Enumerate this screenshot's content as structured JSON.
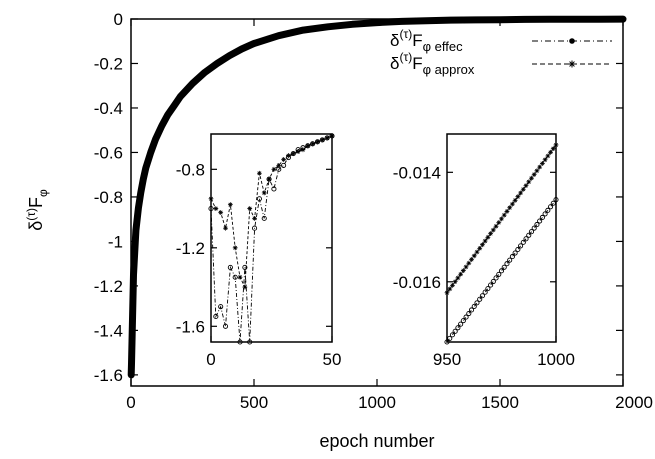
{
  "chart_data": [
    {
      "type": "scatter",
      "panel": "main",
      "xlabel": "epoch number",
      "ylabel": "δ(τ)Fφ",
      "ylabel_parts": {
        "main": "δ",
        "sup": "(τ)",
        "tail": "F",
        "sub": "φ"
      },
      "xlim": [
        0,
        2000
      ],
      "ylim": [
        -1.65,
        0
      ],
      "xticks": [
        0,
        500,
        1000,
        1500,
        2000
      ],
      "xtick_labels": [
        "0",
        "500",
        "1000",
        "1500",
        "2000"
      ],
      "yticks": [
        0,
        -0.2,
        -0.4,
        -0.6,
        -0.8,
        -1,
        -1.2,
        -1.4,
        -1.6
      ],
      "ytick_labels": [
        "0",
        "-0.2",
        "-0.4",
        "-0.6",
        "-0.8",
        "-1",
        "-1.2",
        "-1.4",
        "-1.6"
      ],
      "grid": false,
      "legend_position": "top-right",
      "legend": [
        {
          "name_main": "δ",
          "name_sup": "(τ)",
          "name_tail": "F",
          "name_sub": "φ effec",
          "style": "dot-dash",
          "marker": "circle"
        },
        {
          "name_main": "δ",
          "name_sup": "(τ)",
          "name_tail": "F",
          "name_sub": "φ approx",
          "style": "dashed",
          "marker": "star"
        }
      ],
      "series": [
        {
          "x": [
            1,
            2,
            4,
            6,
            8,
            10,
            15,
            20,
            30,
            40,
            50,
            60,
            80,
            100,
            125,
            150,
            175,
            200,
            250,
            300,
            350,
            400,
            450,
            500,
            600,
            700,
            800,
            900,
            1000,
            1100,
            1200,
            1300,
            1400,
            1500,
            1600,
            1700,
            1800,
            1900,
            2000
          ],
          "y": [
            -1.6,
            -1.55,
            -1.45,
            -1.35,
            -1.25,
            -1.15,
            -1.05,
            -0.95,
            -0.85,
            -0.78,
            -0.72,
            -0.67,
            -0.6,
            -0.54,
            -0.48,
            -0.43,
            -0.39,
            -0.35,
            -0.29,
            -0.24,
            -0.2,
            -0.165,
            -0.135,
            -0.11,
            -0.075,
            -0.05,
            -0.035,
            -0.024,
            -0.016,
            -0.011,
            -0.008,
            -0.005,
            -0.004,
            -0.003,
            -0.002,
            -0.0015,
            -0.001,
            -0.0007,
            -0.0005
          ]
        }
      ]
    },
    {
      "type": "line",
      "panel": "inset-left",
      "xlim": [
        0,
        50
      ],
      "ylim": [
        -1.68,
        -0.62
      ],
      "xticks": [
        0,
        50
      ],
      "xtick_labels": [
        "0",
        "50"
      ],
      "yticks": [
        -0.8,
        -1.2,
        -1.6
      ],
      "ytick_labels": [
        "-0.8",
        "-1.2",
        "-1.6"
      ],
      "series": [
        {
          "name": "δ(τ)Fφ effec",
          "style": "dot-dash",
          "x": [
            0,
            2,
            4,
            6,
            8,
            10,
            12,
            14,
            16,
            18,
            20,
            22,
            24,
            26,
            28,
            30,
            32,
            34,
            36,
            38,
            40,
            42,
            44,
            46,
            48,
            50
          ],
          "y": [
            -1.0,
            -1.55,
            -1.5,
            -1.6,
            -1.3,
            -1.35,
            -1.68,
            -1.3,
            -1.68,
            -1.1,
            -0.95,
            -1.05,
            -0.85,
            -0.9,
            -0.8,
            -0.78,
            -0.74,
            -0.72,
            -0.7,
            -0.69,
            -0.68,
            -0.67,
            -0.66,
            -0.65,
            -0.64,
            -0.63
          ]
        },
        {
          "name": "δ(τ)Fφ approx",
          "style": "dashed",
          "x": [
            0,
            2,
            4,
            6,
            8,
            10,
            12,
            14,
            16,
            18,
            20,
            22,
            24,
            26,
            28,
            30,
            32,
            34,
            36,
            38,
            40,
            42,
            44,
            46,
            48,
            50
          ],
          "y": [
            -0.95,
            -1.0,
            -1.02,
            -1.1,
            -0.98,
            -1.2,
            -1.35,
            -1.4,
            -1.0,
            -1.05,
            -0.82,
            -0.92,
            -0.85,
            -0.8,
            -0.78,
            -0.75,
            -0.73,
            -0.72,
            -0.71,
            -0.7,
            -0.68,
            -0.67,
            -0.66,
            -0.65,
            -0.64,
            -0.63
          ]
        }
      ]
    },
    {
      "type": "line",
      "panel": "inset-right",
      "xlim": [
        950,
        1000
      ],
      "ylim": [
        -0.0171,
        -0.0133
      ],
      "xticks": [
        950,
        1000
      ],
      "xtick_labels": [
        "950",
        "1000"
      ],
      "yticks": [
        -0.014,
        -0.016
      ],
      "ytick_labels": [
        "-0.014",
        "-0.016"
      ],
      "series": [
        {
          "name": "δ(τ)Fφ effec",
          "style": "dot-dash",
          "x": [
            950,
            1000
          ],
          "y": [
            -0.0171,
            -0.0145
          ]
        },
        {
          "name": "δ(τ)Fφ approx",
          "style": "dashed",
          "x": [
            950,
            1000
          ],
          "y": [
            -0.0162,
            -0.0135
          ]
        }
      ]
    }
  ]
}
